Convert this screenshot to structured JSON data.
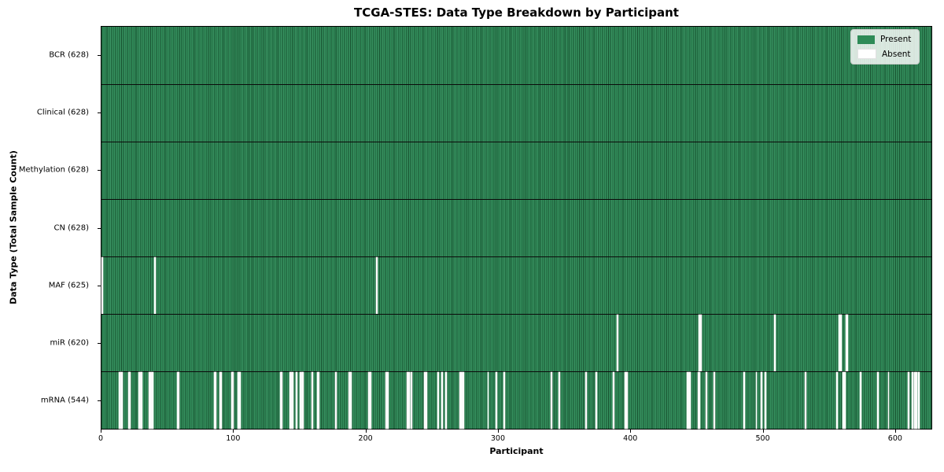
{
  "colors": {
    "present": "#2e8b57",
    "absent": "#ffffff",
    "bar_edge": "#17512f",
    "row_separator": "#0b0b0b",
    "legend_border": "#c9ccc9"
  },
  "chart_data": {
    "type": "heatmap",
    "title": "TCGA-STES: Data Type Breakdown by Participant",
    "xlabel": "Participant",
    "ylabel": "Data Type (Total Sample Count)",
    "x_range": [
      0,
      628
    ],
    "x_ticks": [
      0,
      100,
      200,
      300,
      400,
      500,
      600
    ],
    "legend": {
      "present": "Present",
      "absent": "Absent",
      "position": "upper right"
    },
    "grid": false,
    "rows": [
      {
        "label": "BCR (628)",
        "total_samples": 628,
        "present_count": 628,
        "absent_indices": []
      },
      {
        "label": "Clinical (628)",
        "total_samples": 628,
        "present_count": 628,
        "absent_indices": []
      },
      {
        "label": "Methylation (628)",
        "total_samples": 628,
        "present_count": 628,
        "absent_indices": []
      },
      {
        "label": "CN (628)",
        "total_samples": 628,
        "present_count": 628,
        "absent_indices": []
      },
      {
        "label": "MAF (625)",
        "total_samples": 628,
        "present_count": 625,
        "absent_indices": [
          0,
          40,
          208
        ]
      },
      {
        "label": "miR (620)",
        "total_samples": 628,
        "present_count": 620,
        "absent_indices": [
          390,
          452,
          453,
          509,
          558,
          559,
          563,
          564
        ]
      },
      {
        "label": "mRNA (544)",
        "total_samples": 628,
        "present_count": 544,
        "absent_indices": [
          13,
          14,
          15,
          20,
          21,
          28,
          29,
          30,
          36,
          37,
          38,
          57,
          58,
          85,
          86,
          89,
          90,
          98,
          99,
          103,
          104,
          135,
          136,
          142,
          143,
          144,
          147,
          150,
          151,
          152,
          159,
          163,
          164,
          177,
          187,
          188,
          202,
          203,
          215,
          216,
          231,
          232,
          234,
          244,
          245,
          254,
          257,
          260,
          271,
          272,
          273,
          292,
          298,
          304,
          340,
          346,
          366,
          374,
          387,
          396,
          397,
          443,
          444,
          445,
          451,
          452,
          457,
          463,
          486,
          495,
          499,
          502,
          532,
          556,
          561,
          562,
          574,
          587,
          595,
          610,
          613,
          615,
          616,
          618
        ]
      }
    ]
  }
}
